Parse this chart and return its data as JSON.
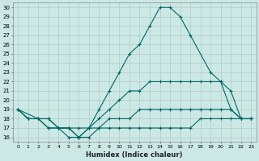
{
  "xlabel": "Humidex (Indice chaleur)",
  "bg_color": "#cce8e4",
  "grid_color": "#b0ccc8",
  "line_color": "#006666",
  "xlim": [
    -0.5,
    23.5
  ],
  "ylim": [
    15.5,
    30.5
  ],
  "xticks": [
    0,
    1,
    2,
    3,
    4,
    5,
    6,
    7,
    8,
    9,
    10,
    11,
    12,
    13,
    14,
    15,
    16,
    17,
    18,
    19,
    20,
    21,
    22,
    23
  ],
  "yticks": [
    16,
    17,
    18,
    19,
    20,
    21,
    22,
    23,
    24,
    25,
    26,
    27,
    28,
    29,
    30
  ],
  "series": [
    {
      "x": [
        0,
        2,
        3,
        5,
        6,
        7,
        8,
        9,
        10,
        11,
        12,
        13,
        14,
        15,
        16,
        17,
        19,
        20,
        21,
        22,
        23
      ],
      "y": [
        19,
        18,
        17,
        17,
        16,
        17,
        19,
        21,
        23,
        25,
        26,
        28,
        30,
        30,
        29,
        27,
        23,
        22,
        19,
        18,
        18
      ]
    },
    {
      "x": [
        0,
        1,
        2,
        3,
        4,
        5,
        6,
        7,
        8,
        9,
        10,
        11,
        12,
        13,
        14,
        15,
        16,
        17,
        18,
        19,
        20,
        21,
        22,
        23
      ],
      "y": [
        19,
        18,
        18,
        17,
        17,
        16,
        16,
        17,
        18,
        19,
        20,
        21,
        21,
        22,
        22,
        22,
        22,
        22,
        22,
        22,
        22,
        21,
        18,
        18
      ]
    },
    {
      "x": [
        0,
        1,
        2,
        3,
        4,
        5,
        6,
        7,
        8,
        9,
        10,
        11,
        12,
        13,
        14,
        15,
        16,
        17,
        18,
        19,
        20,
        21,
        22,
        23
      ],
      "y": [
        19,
        18,
        18,
        18,
        17,
        17,
        17,
        17,
        17,
        18,
        18,
        18,
        19,
        19,
        19,
        19,
        19,
        19,
        19,
        19,
        19,
        19,
        18,
        18
      ]
    },
    {
      "x": [
        0,
        1,
        2,
        3,
        4,
        5,
        6,
        7,
        8,
        9,
        10,
        11,
        12,
        13,
        14,
        15,
        16,
        17,
        18,
        19,
        20,
        21,
        22,
        23
      ],
      "y": [
        19,
        18,
        18,
        18,
        17,
        17,
        16,
        16,
        17,
        17,
        17,
        17,
        17,
        17,
        17,
        17,
        17,
        17,
        18,
        18,
        18,
        18,
        18,
        18
      ]
    }
  ]
}
